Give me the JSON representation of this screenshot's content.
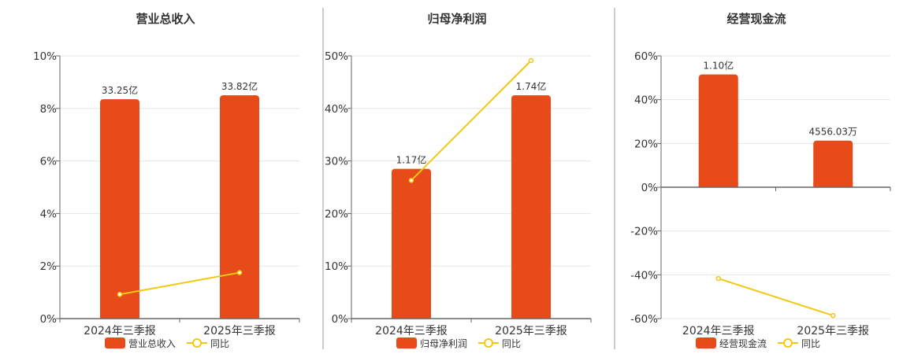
{
  "colors": {
    "bar": "#E84B1A",
    "line": "#F2C811",
    "grid": "#E6E6E6",
    "axis": "#666666",
    "text": "#333333",
    "divider": "#999999"
  },
  "chart_data": [
    {
      "type": "bar",
      "title": "营业总收入",
      "categories": [
        "2024年三季报",
        "2025年三季报"
      ],
      "bar_labels": [
        "33.25亿",
        "33.82亿"
      ],
      "yaxis": {
        "ticks": [
          "10%",
          "8%",
          "6%",
          "4%",
          "2%",
          "0%"
        ],
        "min": 0,
        "max": 10
      },
      "series": [
        {
          "name": "营业总收入",
          "kind": "bar",
          "values": [
            8.35,
            8.5
          ]
        },
        {
          "name": "同比",
          "kind": "line",
          "values": [
            0.92,
            1.75
          ]
        }
      ],
      "legend": {
        "bar": "营业总收入",
        "line": "同比"
      }
    },
    {
      "type": "bar",
      "title": "归母净利润",
      "categories": [
        "2024年三季报",
        "2025年三季报"
      ],
      "bar_labels": [
        "1.17亿",
        "1.74亿"
      ],
      "yaxis": {
        "ticks": [
          "50%",
          "40%",
          "30%",
          "20%",
          "10%",
          "0%"
        ],
        "min": 0,
        "max": 50
      },
      "series": [
        {
          "name": "归母净利润",
          "kind": "bar",
          "values": [
            28.5,
            42.5
          ]
        },
        {
          "name": "同比",
          "kind": "line",
          "values": [
            26.3,
            49.1
          ]
        }
      ],
      "legend": {
        "bar": "归母净利润",
        "line": "同比"
      }
    },
    {
      "type": "bar",
      "title": "经营现金流",
      "categories": [
        "2024年三季报",
        "2025年三季报"
      ],
      "bar_labels": [
        "1.10亿",
        "4556.03万"
      ],
      "yaxis": {
        "ticks": [
          "60%",
          "40%",
          "20%",
          "0%",
          "-20%",
          "-40%",
          "-60%"
        ],
        "min": -60,
        "max": 60
      },
      "series": [
        {
          "name": "经营现金流",
          "kind": "bar",
          "values": [
            51.5,
            21.3
          ]
        },
        {
          "name": "同比",
          "kind": "line",
          "values": [
            -41.7,
            -58.6
          ]
        }
      ],
      "legend": {
        "bar": "经营现金流",
        "line": "同比"
      }
    }
  ]
}
